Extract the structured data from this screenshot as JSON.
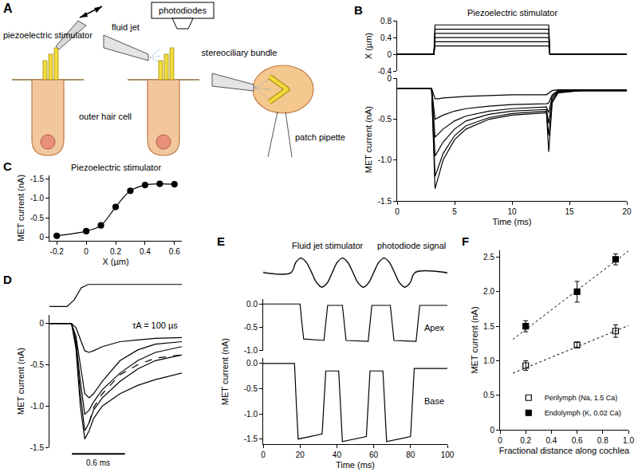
{
  "diagram": {
    "panel": "A",
    "labels": {
      "piezoelectric_stimulator": "piezoelectric stimulator",
      "fluid_jet": "fluid jet",
      "photodiodes": "photodiodes",
      "stereociliary_bundle": "stereociliary bundle",
      "outer_hair_cell": "outer hair cell",
      "patch_pipette": "patch pipette"
    }
  },
  "chart_data": [
    {
      "panel": "B",
      "type": "line",
      "title": "Piezoelectric stimulator",
      "y_label": "X (µm)",
      "tick_labels": "y",
      "grid": false,
      "x": [
        0,
        3.2,
        3.3,
        13.2,
        13.3,
        20
      ],
      "xlim": [
        0,
        20
      ],
      "ylim": [
        -0.4,
        0.8
      ],
      "yticks": [
        -0.4,
        0,
        0.4,
        0.8
      ],
      "series": [
        {
          "color": "#000000",
          "values": [
            0,
            0,
            0.2,
            0.2,
            0,
            0
          ]
        },
        {
          "color": "#000000",
          "values": [
            0,
            0,
            0.3,
            0.3,
            0,
            0
          ]
        },
        {
          "color": "#000000",
          "values": [
            0,
            0,
            0.4,
            0.4,
            0,
            0
          ]
        },
        {
          "color": "#000000",
          "values": [
            0,
            0,
            0.5,
            0.5,
            0,
            0
          ]
        },
        {
          "color": "#000000",
          "values": [
            0,
            0,
            0.6,
            0.6,
            0,
            0
          ]
        },
        {
          "color": "#000000",
          "values": [
            0,
            0,
            0.7,
            0.7,
            0,
            0
          ]
        }
      ]
    },
    {
      "type": "line",
      "x_label": "Time (ms)",
      "y_label": "MET current (nA)",
      "grid": false,
      "x": [
        0,
        3.0,
        3.3,
        3.6,
        4,
        5,
        6,
        8,
        10,
        13,
        13.2,
        13.5,
        14,
        16,
        20
      ],
      "xlim": [
        0,
        20
      ],
      "xticks": [
        0,
        5,
        10,
        15,
        20
      ],
      "ylim": [
        -1.5,
        0
      ],
      "yticks": [
        0,
        -0.5,
        {
          "value": -1,
          "label": "-1.0"
        },
        -1.5
      ],
      "series": [
        {
          "color": "#000000",
          "values": [
            -0.12,
            -0.12,
            -1.35,
            -1.2,
            -1.0,
            -0.75,
            -0.62,
            -0.5,
            -0.45,
            -0.42,
            -0.9,
            -0.3,
            -0.18,
            -0.15,
            -0.15
          ]
        },
        {
          "color": "#000000",
          "values": [
            -0.12,
            -0.12,
            -1.2,
            -1.08,
            -0.92,
            -0.7,
            -0.58,
            -0.48,
            -0.43,
            -0.4,
            -0.7,
            -0.28,
            -0.17,
            -0.15,
            -0.15
          ]
        },
        {
          "color": "#000000",
          "values": [
            -0.12,
            -0.12,
            -0.95,
            -0.88,
            -0.78,
            -0.62,
            -0.52,
            -0.44,
            -0.4,
            -0.38,
            -0.55,
            -0.25,
            -0.16,
            -0.15,
            -0.15
          ]
        },
        {
          "color": "#000000",
          "values": [
            -0.12,
            -0.12,
            -0.72,
            -0.68,
            -0.62,
            -0.52,
            -0.46,
            -0.4,
            -0.37,
            -0.35,
            -0.42,
            -0.22,
            -0.16,
            -0.15,
            -0.15
          ]
        },
        {
          "color": "#000000",
          "values": [
            -0.12,
            -0.12,
            -0.5,
            -0.48,
            -0.45,
            -0.4,
            -0.37,
            -0.34,
            -0.32,
            -0.31,
            -0.3,
            -0.2,
            -0.15,
            -0.15,
            -0.15
          ]
        },
        {
          "color": "#000000",
          "values": [
            -0.12,
            -0.12,
            -0.25,
            -0.25,
            -0.24,
            -0.23,
            -0.22,
            -0.21,
            -0.2,
            -0.2,
            -0.18,
            -0.15,
            -0.14,
            -0.14,
            -0.14
          ]
        }
      ]
    },
    {
      "panel": "C",
      "type": "scatter",
      "title": "Piezoelectric stimulator",
      "x_label": "X (µm)",
      "y_label": "MET current (nA)",
      "grid": false,
      "x": [
        -0.2,
        0,
        0.1,
        0.2,
        0.3,
        0.4,
        0.5,
        0.6
      ],
      "xlim": [
        -0.25,
        0.65
      ],
      "xticks": [
        -0.2,
        0,
        0.2,
        0.4,
        0.6
      ],
      "ylim": [
        0.1,
        -1.6
      ],
      "yticks": [
        0,
        -0.5,
        {
          "value": -1,
          "label": "-1.0"
        },
        -1.5
      ],
      "series": [
        {
          "color": "#000000",
          "marker": "circle",
          "line_style": "solid",
          "values": [
            -0.03,
            -0.15,
            -0.3,
            -0.78,
            -1.2,
            -1.35,
            -1.38,
            -1.37
          ]
        }
      ]
    },
    {
      "panel": "D",
      "type": "line",
      "tick_labels": false,
      "grid": false,
      "x": [
        0,
        0.2,
        0.28,
        0.36,
        0.44,
        1.5
      ],
      "xlim": [
        0,
        1.5
      ],
      "ylim": [
        -0.1,
        1.1
      ],
      "series": [
        {
          "color": "#000000",
          "values": [
            0,
            0,
            0.3,
            0.85,
            1,
            1
          ]
        }
      ]
    },
    {
      "type": "line",
      "y_label": "MET current (nA)",
      "tick_labels": "y",
      "grid": false,
      "annotations": [
        "τA = 100 µs"
      ],
      "scale_bar": {
        "value": 0.6,
        "label": "0.6 ms"
      },
      "x": [
        0,
        0.25,
        0.3,
        0.35,
        0.4,
        0.45,
        0.5,
        0.6,
        0.8,
        1.0,
        1.2,
        1.5
      ],
      "xlim": [
        0,
        1.5
      ],
      "ylim": [
        -1.5,
        0.1
      ],
      "yticks": [
        0,
        -0.5,
        {
          "value": -1,
          "label": "-1.0"
        },
        -1.5
      ],
      "series": [
        {
          "color": "#000000",
          "values": [
            0,
            0,
            -0.3,
            -1.0,
            -1.4,
            -1.3,
            -1.15,
            -1.0,
            -0.85,
            -0.75,
            -0.68,
            -0.6
          ]
        },
        {
          "color": "#000000",
          "values": [
            0,
            0,
            -0.25,
            -0.85,
            -1.3,
            -1.2,
            -1.05,
            -0.9,
            -0.7,
            -0.55,
            -0.45,
            -0.38
          ]
        },
        {
          "color": "#000000",
          "values": [
            0,
            0,
            -0.2,
            -0.7,
            -1.1,
            -1.05,
            -0.95,
            -0.8,
            -0.6,
            -0.45,
            -0.35,
            -0.28
          ]
        },
        {
          "color": "#000000",
          "values": [
            0,
            0,
            -0.15,
            -0.5,
            -0.85,
            -0.9,
            -0.85,
            -0.7,
            -0.45,
            -0.32,
            -0.25,
            -0.22
          ]
        },
        {
          "color": "#000000",
          "values": [
            0,
            0,
            -0.05,
            -0.2,
            -0.33,
            -0.35,
            -0.33,
            -0.28,
            -0.22,
            -0.2,
            -0.18,
            -0.17
          ]
        },
        {
          "color": "#000000",
          "line_style": "dash",
          "values": [
            null,
            null,
            null,
            null,
            null,
            -1.2,
            -1.02,
            -0.85,
            -0.62,
            -0.5,
            -0.42,
            -0.38
          ]
        }
      ]
    },
    {
      "panel": "E",
      "type": "line",
      "title": "Fluid jet stimulator",
      "tick_labels": false,
      "grid": false,
      "annotations": [
        "photodiode signal"
      ],
      "x": [
        0,
        15,
        17.8,
        20.6,
        23.4,
        26.3,
        29.1,
        31.9,
        34.7,
        37.5,
        40.3,
        43.1,
        45.9,
        48.8,
        51.6,
        54.4,
        57.2,
        60,
        62.8,
        65.6,
        68.4,
        71.3,
        74.1,
        76.9,
        79.7,
        82.5,
        100
      ],
      "xlim": [
        0,
        100
      ],
      "ylim": [
        -1.3,
        1.3
      ],
      "series": [
        {
          "color": "#999999",
          "values": [
            0.05,
            -0.05,
            0.75,
            0.95,
            0.68,
            0.05,
            -0.68,
            -0.95,
            -0.74,
            0.04,
            0.73,
            0.97,
            0.66,
            -0.03,
            -0.72,
            -0.98,
            -0.69,
            0.03,
            0.7,
            0.96,
            0.72,
            0.02,
            -0.7,
            -0.97,
            -0.73,
            0.05,
            -0.06
          ]
        },
        {
          "color": "#000000",
          "values": [
            0,
            0,
            0.71,
            1,
            0.71,
            0,
            -0.71,
            -1,
            -0.71,
            0,
            0.71,
            1,
            0.71,
            0,
            -0.71,
            -1,
            -0.71,
            0,
            0.71,
            1,
            0.71,
            0,
            -0.71,
            -1,
            -0.71,
            0,
            0
          ]
        }
      ]
    },
    {
      "type": "line",
      "tick_labels": "y",
      "grid": false,
      "annotations": [
        "Apex"
      ],
      "x": [
        0,
        20,
        21,
        22,
        33,
        34,
        35,
        43,
        44,
        45,
        57,
        58,
        59,
        69,
        70,
        71,
        83,
        84,
        85,
        100
      ],
      "xlim": [
        0,
        100
      ],
      "ylim": [
        -1.0,
        0.1
      ],
      "yticks": [
        {
          "value": 0,
          "label": "0.0"
        },
        -0.5,
        {
          "value": -1,
          "label": "-1.0"
        }
      ],
      "series": [
        {
          "color": "#000000",
          "values": [
            0,
            0,
            -0.4,
            -0.75,
            -0.78,
            -0.4,
            -0.03,
            -0.03,
            -0.4,
            -0.78,
            -0.8,
            -0.4,
            -0.03,
            -0.03,
            -0.4,
            -0.78,
            -0.8,
            -0.4,
            -0.03,
            -0.03
          ]
        }
      ]
    },
    {
      "type": "line",
      "x_label": "Time (ms)",
      "y_label": "MET current (nA)",
      "grid": false,
      "annotations": [
        "Base"
      ],
      "x": [
        0,
        17,
        18,
        19,
        32,
        33,
        34,
        41,
        42,
        43,
        56,
        57,
        58,
        65,
        66,
        67,
        80,
        81,
        82,
        100
      ],
      "xlim": [
        0,
        100
      ],
      "xticks": [
        0,
        20,
        40,
        60,
        80,
        100
      ],
      "ylim": [
        -1.6,
        0.1
      ],
      "yticks": [
        {
          "value": 0,
          "label": "0.0"
        },
        -0.5,
        {
          "value": -1,
          "label": "-1.0"
        },
        -1.5
      ],
      "series": [
        {
          "color": "#000000",
          "values": [
            0,
            0,
            -0.8,
            -1.5,
            -1.4,
            -0.8,
            -0.15,
            -0.15,
            -0.8,
            -1.55,
            -1.45,
            -0.8,
            -0.15,
            -0.15,
            -0.8,
            -1.55,
            -1.45,
            -0.8,
            -0.1,
            -0.1
          ]
        }
      ]
    },
    {
      "panel": "F",
      "type": "scatter",
      "x_label": "Fractional distance along cochlea",
      "y_label": "MET current (nA)",
      "grid": false,
      "legend": "lower right",
      "x": [
        0.2,
        0.6,
        0.9
      ],
      "xlim": [
        0,
        1
      ],
      "xticks": [
        0,
        0.2,
        0.4,
        0.6,
        0.8,
        {
          "value": 1,
          "label": "1.0"
        }
      ],
      "ylim": [
        0,
        2.6
      ],
      "yticks": [
        0,
        0.5,
        {
          "value": 1,
          "label": "1.0"
        },
        1.5,
        {
          "value": 2,
          "label": "2.0"
        },
        2.5
      ],
      "series": [
        {
          "name": "Perilymph (Na, 1.5 Ca)",
          "color": "#000000",
          "marker": "square-open",
          "values": [
            0.93,
            1.23,
            1.43
          ],
          "errors": [
            0.07,
            0.04,
            0.09
          ],
          "fit_x": [
            0.1,
            1.0
          ],
          "fit_values": [
            0.82,
            1.51
          ]
        },
        {
          "name": "Endolymph (K, 0.02 Ca)",
          "color": "#000000",
          "marker": "square",
          "values": [
            1.5,
            2.0,
            2.47
          ],
          "errors": [
            0.08,
            0.15,
            0.08
          ],
          "fit_x": [
            0.1,
            1.0
          ],
          "fit_values": [
            1.31,
            2.59
          ]
        }
      ]
    }
  ]
}
